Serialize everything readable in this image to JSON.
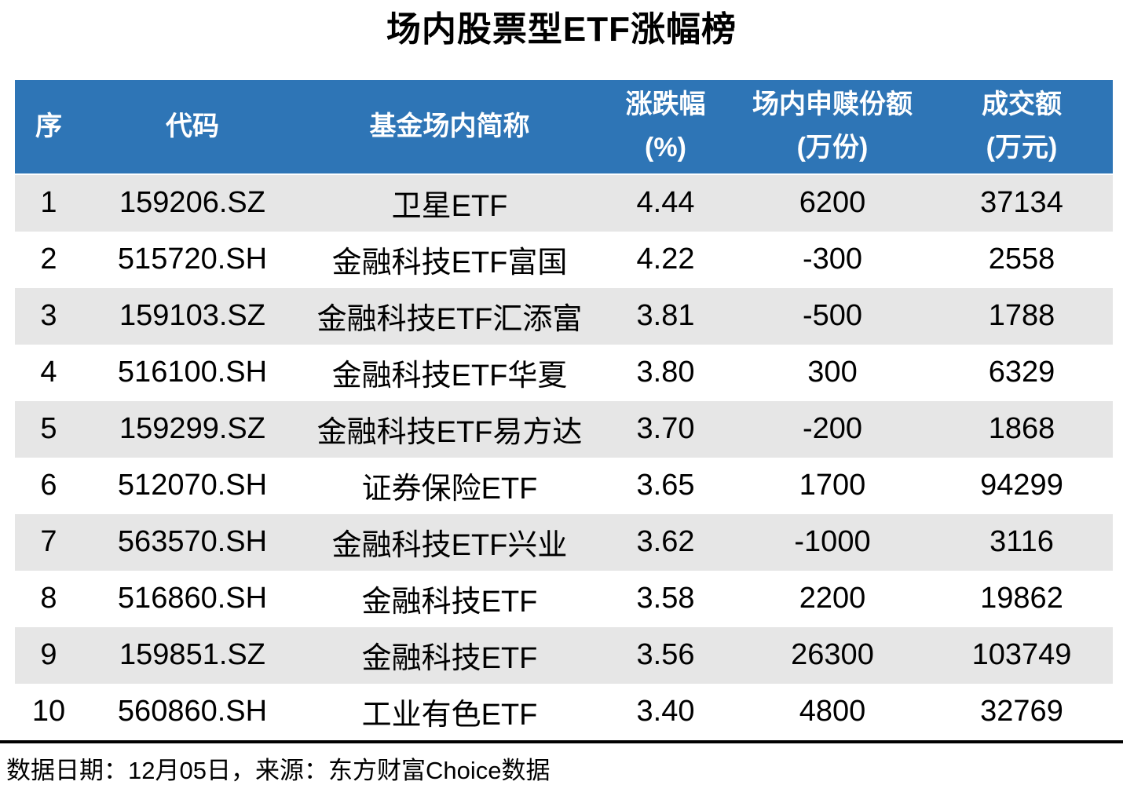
{
  "page_title": "场内股票型ETF涨幅榜",
  "colors": {
    "header_bg": "#2E75B6",
    "header_text": "#FFFFFF",
    "stripe_row_bg": "#E6E6E6",
    "plain_row_bg": "#FFFFFF",
    "body_text": "#000000",
    "divider": "#000000"
  },
  "table_header": {
    "seq": {
      "line1": "序"
    },
    "code": {
      "line1": "代码"
    },
    "fund_name": {
      "line1": "基金场内简称"
    },
    "change_pct": {
      "line1": "涨跌幅",
      "line2": "(%)"
    },
    "shares": {
      "line1": "场内申赎份额",
      "line2": "(万份)"
    },
    "turnover": {
      "line1": "成交额",
      "line2": "(万元)"
    }
  },
  "chart_data": {
    "type": "table",
    "title": "场内股票型ETF涨幅榜",
    "columns": [
      "序",
      "代码",
      "基金场内简称",
      "涨跌幅(%)",
      "场内申赎份额(万份)",
      "成交额(万元)"
    ],
    "rows": [
      [
        "1",
        "159206.SZ",
        "卫星ETF",
        "4.44",
        "6200",
        "37134"
      ],
      [
        "2",
        "515720.SH",
        "金融科技ETF富国",
        "4.22",
        "-300",
        "2558"
      ],
      [
        "3",
        "159103.SZ",
        "金融科技ETF汇添富",
        "3.81",
        "-500",
        "1788"
      ],
      [
        "4",
        "516100.SH",
        "金融科技ETF华夏",
        "3.80",
        "300",
        "6329"
      ],
      [
        "5",
        "159299.SZ",
        "金融科技ETF易方达",
        "3.70",
        "-200",
        "1868"
      ],
      [
        "6",
        "512070.SH",
        "证券保险ETF",
        "3.65",
        "1700",
        "94299"
      ],
      [
        "7",
        "563570.SH",
        "金融科技ETF兴业",
        "3.62",
        "-1000",
        "3116"
      ],
      [
        "8",
        "516860.SH",
        "金融科技ETF",
        "3.58",
        "2200",
        "19862"
      ],
      [
        "9",
        "159851.SZ",
        "金融科技ETF",
        "3.56",
        "26300",
        "103749"
      ],
      [
        "10",
        "560860.SH",
        "工业有色ETF",
        "3.40",
        "4800",
        "32769"
      ]
    ]
  },
  "footer": {
    "note": "数据日期：12月05日，来源：东方财富Choice数据"
  }
}
